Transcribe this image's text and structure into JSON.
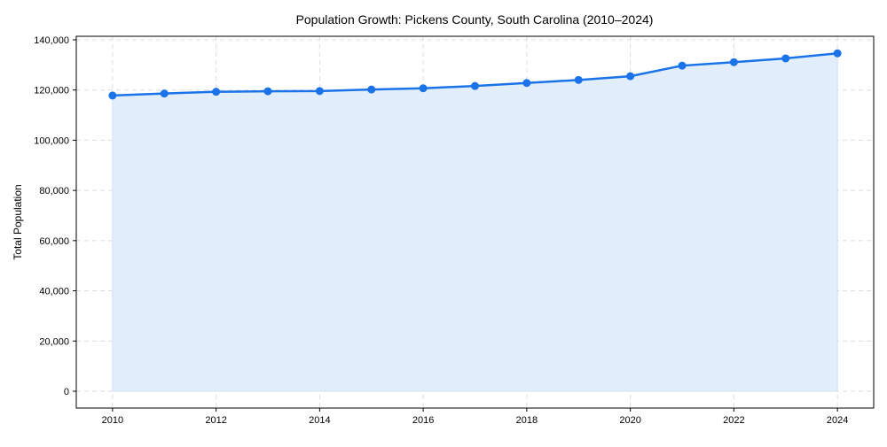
{
  "chart_data": {
    "type": "line",
    "title": "Population Growth: Pickens County, South Carolina (2010–2024)",
    "xlabel": "",
    "ylabel": "Total Population",
    "x": [
      2010,
      2011,
      2012,
      2013,
      2014,
      2015,
      2016,
      2017,
      2018,
      2019,
      2020,
      2021,
      2022,
      2023,
      2024
    ],
    "series": [
      {
        "name": "Total Population",
        "values": [
          117800,
          118600,
          119300,
          119500,
          119600,
          120200,
          120700,
          121600,
          122800,
          124000,
          125500,
          129700,
          131100,
          132600,
          134600
        ]
      }
    ],
    "xticks": [
      2010,
      2012,
      2014,
      2016,
      2018,
      2020,
      2022,
      2024
    ],
    "xtick_labels": [
      "2010",
      "2012",
      "2014",
      "2016",
      "2018",
      "2020",
      "2022",
      "2024"
    ],
    "yticks": [
      0,
      20000,
      40000,
      60000,
      80000,
      100000,
      120000,
      140000
    ],
    "ytick_labels": [
      "0",
      "20,000",
      "40,000",
      "60,000",
      "80,000",
      "100,000",
      "120,000",
      "140,000"
    ],
    "xlim": [
      2009.3,
      2024.7
    ],
    "ylim": [
      -6700,
      141400
    ],
    "grid": true,
    "fill_under": true,
    "colors": {
      "line": "#1a73e8",
      "fill": "#e3eefd",
      "grid": "#dddddd"
    }
  }
}
